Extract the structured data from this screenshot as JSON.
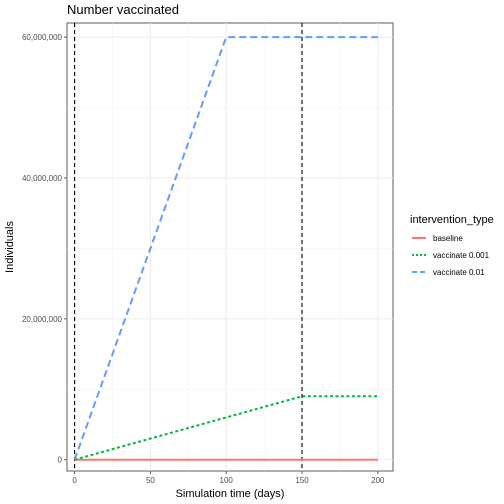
{
  "chart_data": {
    "type": "line",
    "title": "Number vaccinated",
    "xlabel": "Simulation time (days)",
    "ylabel": "Individuals",
    "xlim": [
      -5,
      210
    ],
    "ylim": [
      -1600000,
      62000000
    ],
    "x_ticks": [
      0,
      50,
      100,
      150,
      200
    ],
    "x_tick_labels": [
      "0",
      "50",
      "100",
      "150",
      "200"
    ],
    "y_ticks": [
      0,
      20000000,
      40000000,
      60000000
    ],
    "y_tick_labels": [
      "0",
      "20,000,000",
      "40,000,000",
      "60,000,000"
    ],
    "grid": true,
    "legend": {
      "title": "intervention_type",
      "position": "right"
    },
    "vlines": [
      0,
      150
    ],
    "series": [
      {
        "name": "baseline",
        "color": "#F8766D",
        "dash": "solid",
        "x": [
          0,
          200
        ],
        "y": [
          0,
          0
        ]
      },
      {
        "name": "vaccinate 0.001",
        "color": "#00BA38",
        "dash": "dotted",
        "x": [
          0,
          150,
          200
        ],
        "y": [
          0,
          9000000,
          9000000
        ]
      },
      {
        "name": "vaccinate 0.01",
        "color": "#619CFF",
        "dash": "dashed",
        "x": [
          0,
          100,
          200
        ],
        "y": [
          0,
          60000000,
          60000000
        ]
      }
    ]
  }
}
